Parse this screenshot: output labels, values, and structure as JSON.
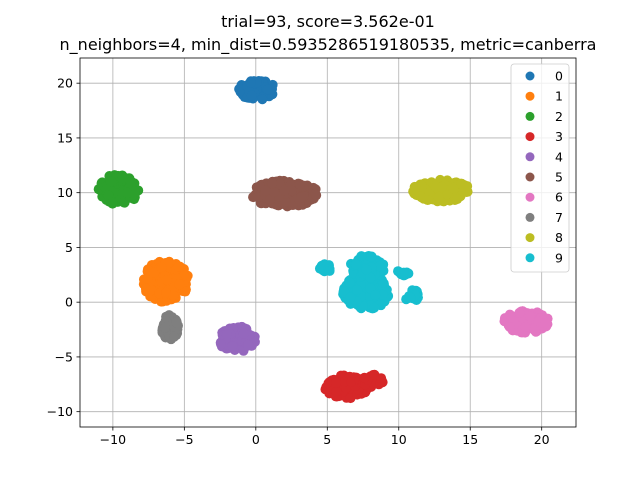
{
  "chart_data": {
    "type": "scatter",
    "title_line1": "trial=93, score=3.562e-01",
    "title_line2": "n_neighbors=4, min_dist=0.5935286519180535, metric=canberra",
    "xlabel": "",
    "ylabel": "",
    "xlim": [
      -12.3,
      22.4
    ],
    "ylim": [
      -11.4,
      22.3
    ],
    "xticks": [
      -10,
      -5,
      0,
      5,
      10,
      15,
      20
    ],
    "yticks": [
      -10,
      -5,
      0,
      5,
      10,
      15,
      20
    ],
    "grid": true,
    "legend_position": "upper-right",
    "series": [
      {
        "name": "0",
        "color": "#1f77b4",
        "clusters": [
          {
            "cx": 0.1,
            "cy": 19.4,
            "rx": 1.3,
            "ry": 0.9,
            "n": 70
          }
        ]
      },
      {
        "name": "1",
        "color": "#ff7f0e",
        "clusters": [
          {
            "cx": -6.3,
            "cy": 1.9,
            "rx": 1.6,
            "ry": 1.9,
            "n": 160
          }
        ]
      },
      {
        "name": "2",
        "color": "#2ca02c",
        "clusters": [
          {
            "cx": -9.6,
            "cy": 10.3,
            "rx": 1.4,
            "ry": 1.4,
            "n": 100
          }
        ]
      },
      {
        "name": "3",
        "color": "#d62728",
        "clusters": [
          {
            "cx": 6.4,
            "cy": -7.7,
            "rx": 1.6,
            "ry": 1.1,
            "n": 110
          },
          {
            "cx": 8.1,
            "cy": -7.2,
            "rx": 0.8,
            "ry": 0.6,
            "n": 30
          }
        ]
      },
      {
        "name": "4",
        "color": "#9467bd",
        "clusters": [
          {
            "cx": -1.3,
            "cy": -3.4,
            "rx": 1.3,
            "ry": 1.2,
            "n": 100
          }
        ]
      },
      {
        "name": "5",
        "color": "#8c564b",
        "clusters": [
          {
            "cx": 2.0,
            "cy": 9.9,
            "rx": 2.4,
            "ry": 1.2,
            "n": 200
          }
        ]
      },
      {
        "name": "6",
        "color": "#e377c2",
        "clusters": [
          {
            "cx": 18.9,
            "cy": -1.8,
            "rx": 1.6,
            "ry": 1.0,
            "n": 130
          }
        ]
      },
      {
        "name": "7",
        "color": "#7f7f7f",
        "clusters": [
          {
            "cx": -6.0,
            "cy": -2.3,
            "rx": 0.6,
            "ry": 1.2,
            "n": 50
          }
        ]
      },
      {
        "name": "8",
        "color": "#bcbd22",
        "clusters": [
          {
            "cx": 13.0,
            "cy": 10.2,
            "rx": 2.0,
            "ry": 1.0,
            "n": 140
          }
        ]
      },
      {
        "name": "9",
        "color": "#17becf",
        "clusters": [
          {
            "cx": 7.7,
            "cy": 0.9,
            "rx": 1.6,
            "ry": 1.6,
            "n": 170
          },
          {
            "cx": 7.8,
            "cy": 3.2,
            "rx": 1.2,
            "ry": 1.1,
            "n": 70
          },
          {
            "cx": 4.9,
            "cy": 3.0,
            "rx": 0.5,
            "ry": 0.5,
            "n": 15
          },
          {
            "cx": 10.9,
            "cy": 0.6,
            "rx": 0.5,
            "ry": 0.6,
            "n": 15
          },
          {
            "cx": 10.3,
            "cy": 2.7,
            "rx": 0.4,
            "ry": 0.3,
            "n": 8
          }
        ]
      }
    ]
  }
}
